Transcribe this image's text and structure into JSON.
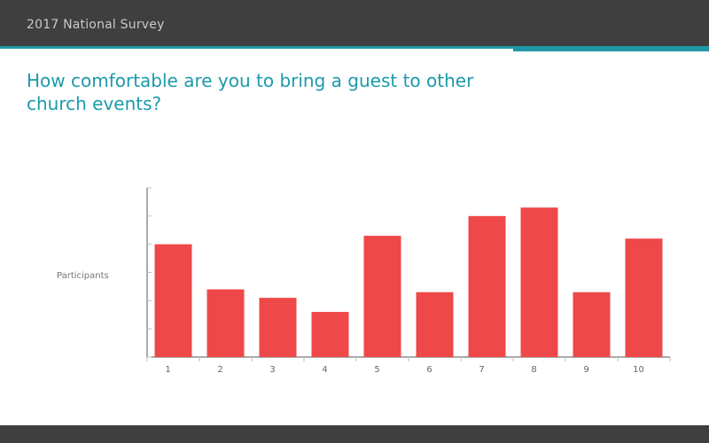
{
  "header": {
    "title": "2017 National Survey"
  },
  "question": "How comfortable are you to bring a guest to other church events?",
  "colors": {
    "header_bg": "#3f3f3f",
    "accent": "#1f97a6",
    "bar": "#ef4848"
  },
  "chart_data": {
    "type": "bar",
    "title": "",
    "xlabel": "",
    "ylabel": "Participants",
    "categories": [
      "1",
      "2",
      "3",
      "4",
      "5",
      "6",
      "7",
      "8",
      "9",
      "10"
    ],
    "values": [
      40,
      24,
      21,
      16,
      43,
      23,
      50,
      53,
      23,
      42
    ],
    "ylim": [
      0,
      60
    ],
    "grid": false,
    "yticks_labeled": false
  }
}
